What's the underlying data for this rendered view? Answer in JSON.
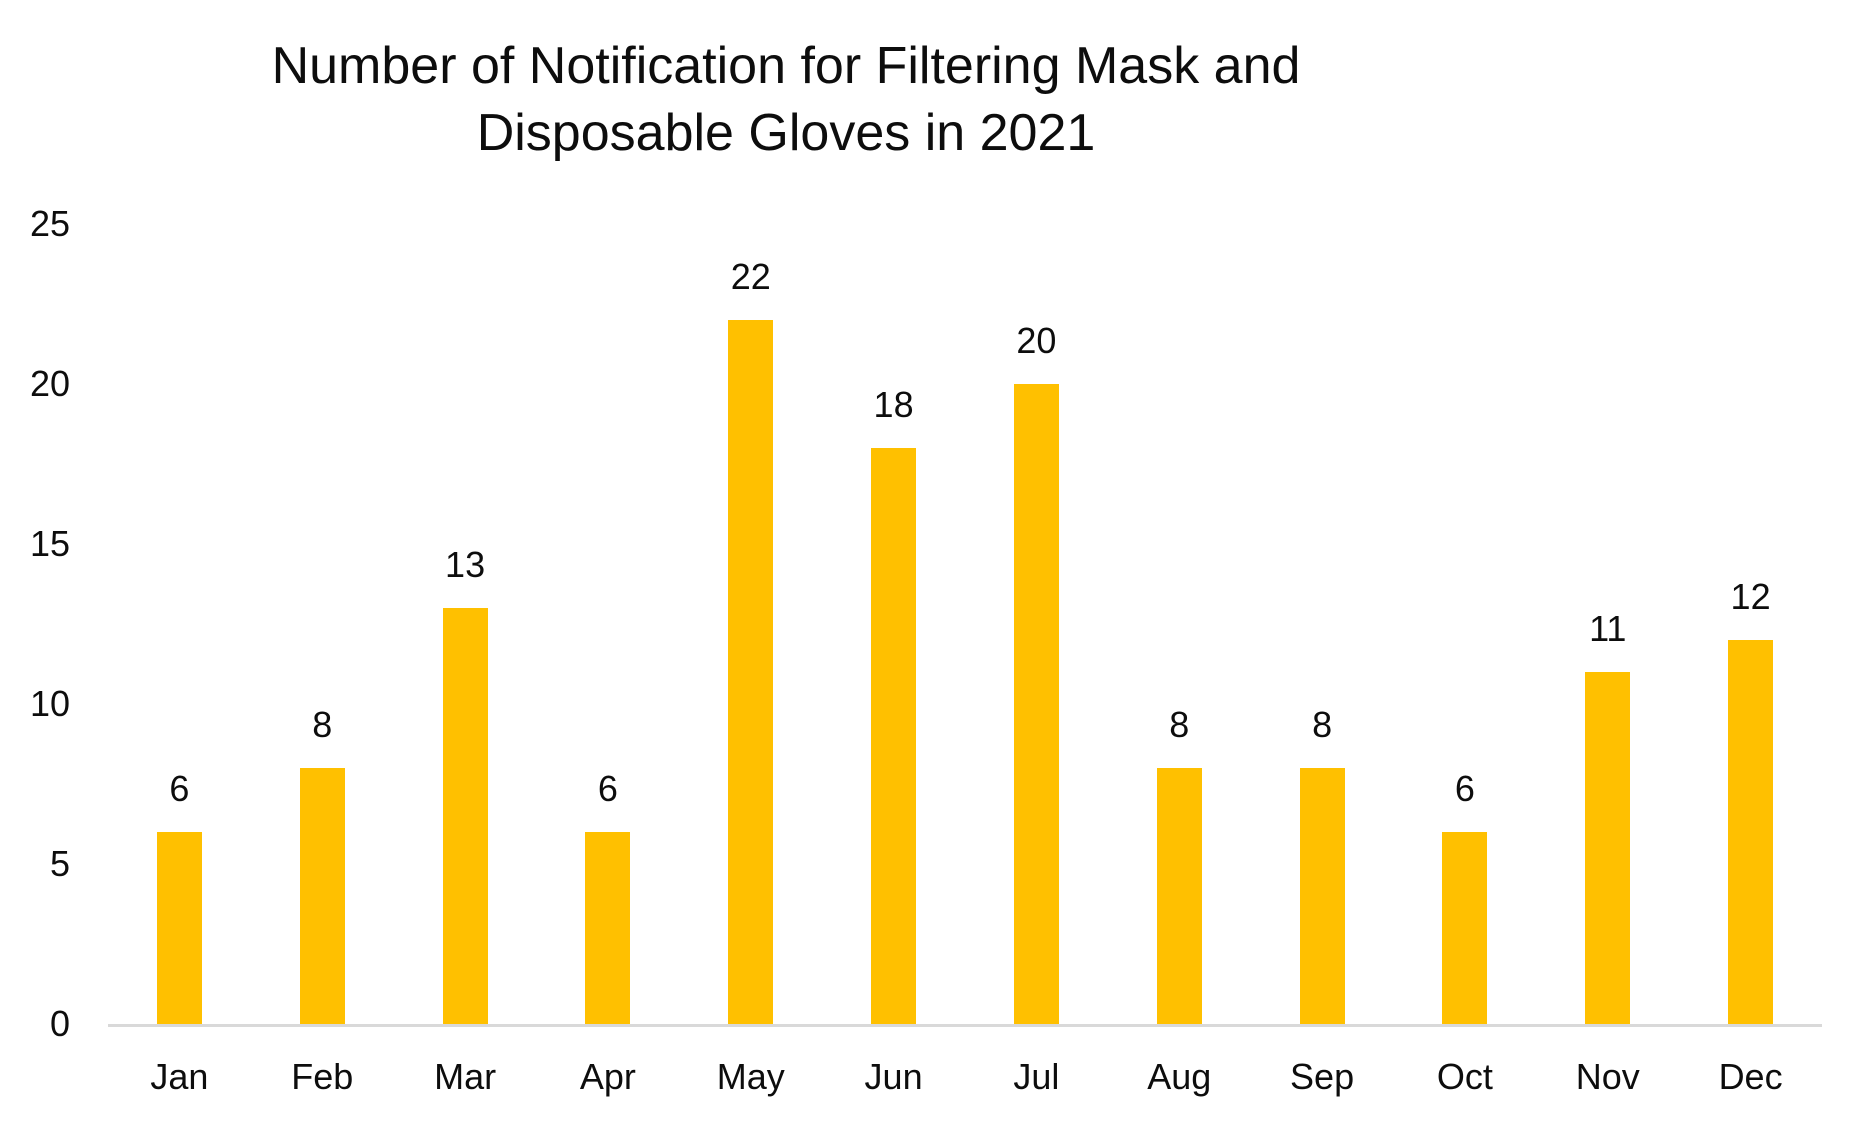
{
  "title": {
    "line1": "Number of Notification for Filtering Mask and",
    "line2": "Disposable Gloves in 2021"
  },
  "chart_data": {
    "type": "bar",
    "title": "Number of Notification for Filtering Mask and Disposable Gloves in 2021",
    "categories": [
      "Jan",
      "Feb",
      "Mar",
      "Apr",
      "May",
      "Jun",
      "Jul",
      "Aug",
      "Sep",
      "Oct",
      "Nov",
      "Dec"
    ],
    "values": [
      6,
      8,
      13,
      6,
      22,
      18,
      20,
      8,
      8,
      6,
      11,
      12
    ],
    "data_labels": [
      6,
      8,
      13,
      6,
      22,
      18,
      20,
      8,
      8,
      6,
      11,
      12
    ],
    "xlabel": "",
    "ylabel": "",
    "ylim": [
      0,
      25
    ],
    "yticks": [
      0,
      5,
      10,
      15,
      20,
      25
    ],
    "grid": false,
    "legend_position": "none",
    "bar_color": "#FFC000",
    "axis_line_color": "#D9D9D9",
    "text_color": "#0D0D0D"
  }
}
